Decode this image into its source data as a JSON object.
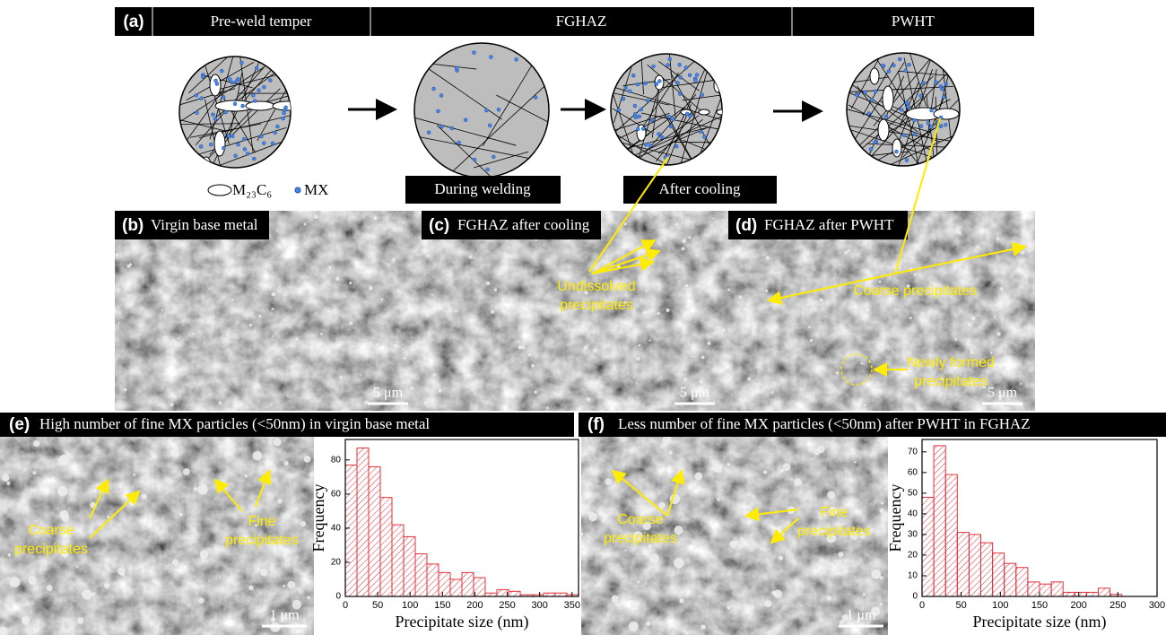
{
  "header": {
    "panel_label": "(a)",
    "stages": [
      "Pre-weld temper",
      "FGHAZ",
      "PWHT"
    ]
  },
  "legend": {
    "ellipse": "M₂₃C₆",
    "dot": "MX"
  },
  "steps": [
    "During welding",
    "After cooling"
  ],
  "panels": [
    {
      "label": "(b)",
      "title": "Virgin base metal",
      "scale": "5 μm",
      "annotations": []
    },
    {
      "label": "(c)",
      "title": "FGHAZ after cooling",
      "scale": "5 μm",
      "annotations": [
        [
          "Undissolved",
          "precipitates"
        ]
      ]
    },
    {
      "label": "(d)",
      "title": "FGHAZ after PWHT",
      "scale": "5 μm",
      "annotations": [
        [
          "Coarse precipitates"
        ],
        [
          "Newly formed",
          "precipitates"
        ]
      ]
    },
    {
      "label": "(e)",
      "title": "High number of fine MX particles (<50nm) in virgin base metal",
      "scale": "1 μm",
      "annotations": [
        [
          "Coarse",
          "precipitates"
        ],
        [
          "Fine",
          "precipitates"
        ]
      ]
    },
    {
      "label": "(f)",
      "title": "Less number of fine MX particles (<50nm) after PWHT in FGHAZ",
      "scale": "1 μm",
      "annotations": [
        [
          "Coarse",
          "precipitates"
        ],
        [
          "Fine",
          "precipitates"
        ]
      ]
    }
  ],
  "chart_data": [
    {
      "type": "histogram",
      "xlabel": "Precipitate size (nm)",
      "ylabel": "Frequency",
      "color": "#e0303a",
      "bins": [
        0,
        18,
        36,
        54,
        72,
        90,
        108,
        126,
        144,
        162,
        180,
        198,
        216,
        234,
        252,
        270,
        288,
        306,
        324,
        342,
        360
      ],
      "values": [
        77,
        87,
        76,
        58,
        42,
        35,
        25,
        19,
        14,
        10,
        14,
        11,
        2,
        4,
        3,
        1,
        1,
        2,
        2,
        1
      ],
      "xlim": [
        0,
        360
      ],
      "ylim": [
        0,
        92
      ],
      "xticks": [
        0,
        50,
        100,
        150,
        200,
        250,
        300,
        350
      ],
      "yticks": [
        0,
        20,
        40,
        60,
        80
      ]
    },
    {
      "type": "histogram",
      "xlabel": "Precipitate size (nm)",
      "ylabel": "Frequency",
      "color": "#e0303a",
      "bins": [
        0,
        15,
        30,
        45,
        60,
        75,
        90,
        105,
        120,
        135,
        150,
        165,
        180,
        195,
        210,
        225,
        240,
        255,
        270,
        285,
        300
      ],
      "values": [
        48,
        73,
        59,
        31,
        30,
        26,
        21,
        16,
        14,
        7,
        6,
        7,
        2,
        2,
        2,
        4,
        1,
        0,
        0,
        0
      ],
      "xlim": [
        0,
        300
      ],
      "ylim": [
        0,
        76
      ],
      "xticks": [
        0,
        50,
        100,
        150,
        200,
        250,
        300
      ],
      "yticks": [
        0,
        10,
        20,
        30,
        40,
        50,
        60,
        70
      ]
    }
  ]
}
